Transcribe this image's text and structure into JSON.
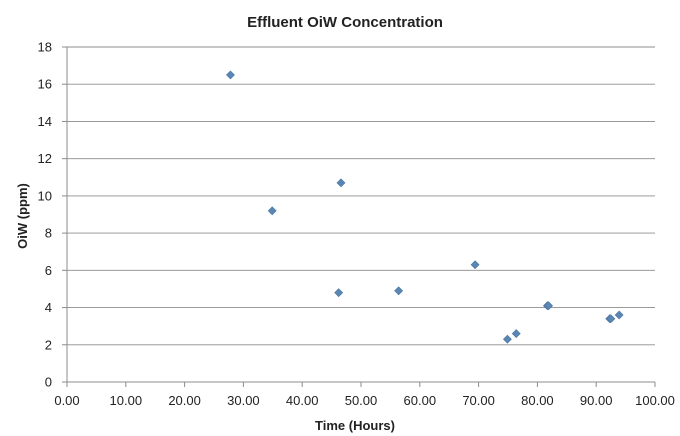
{
  "chart_data": {
    "type": "scatter",
    "title": "Effluent OiW Concentration",
    "xlabel": "Time (Hours)",
    "ylabel": "OiW (ppm)",
    "xlim": [
      0,
      100
    ],
    "ylim": [
      0,
      18
    ],
    "x_ticks": [
      "0.00",
      "10.00",
      "20.00",
      "30.00",
      "40.00",
      "50.00",
      "60.00",
      "70.00",
      "80.00",
      "90.00",
      "100.00"
    ],
    "y_ticks": [
      "0",
      "2",
      "4",
      "6",
      "8",
      "10",
      "12",
      "14",
      "16",
      "18"
    ],
    "grid": "horizontal",
    "legend": "none",
    "marker": "diamond",
    "marker_color": "#5a86b3",
    "series": [
      {
        "points": [
          {
            "x": 27.8,
            "y": 16.5
          },
          {
            "x": 34.9,
            "y": 9.2
          },
          {
            "x": 46.2,
            "y": 4.8
          },
          {
            "x": 46.6,
            "y": 10.7
          },
          {
            "x": 56.4,
            "y": 4.9
          },
          {
            "x": 69.4,
            "y": 6.3
          },
          {
            "x": 74.9,
            "y": 2.3
          },
          {
            "x": 76.4,
            "y": 2.6
          },
          {
            "x": 81.7,
            "y": 4.1
          },
          {
            "x": 81.9,
            "y": 4.1
          },
          {
            "x": 92.3,
            "y": 3.4
          },
          {
            "x": 92.5,
            "y": 3.4
          },
          {
            "x": 93.9,
            "y": 3.6
          }
        ]
      }
    ]
  }
}
